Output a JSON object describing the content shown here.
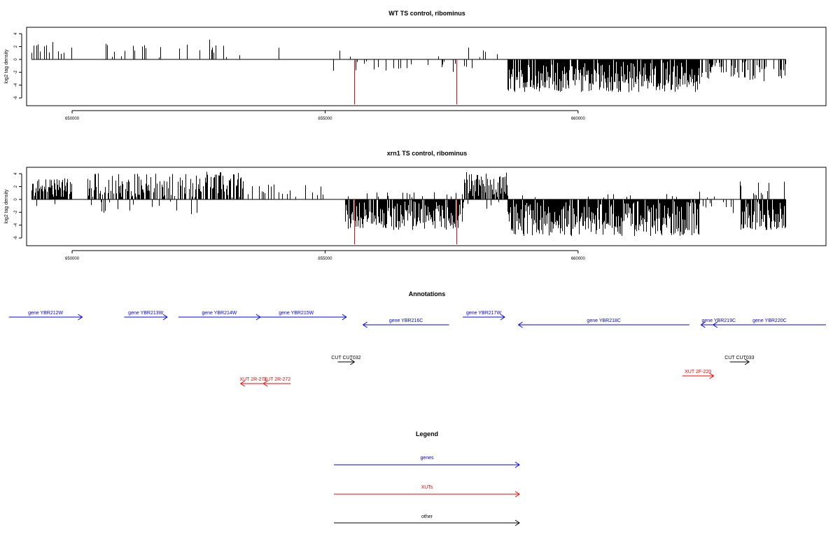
{
  "chart_data": [
    {
      "type": "bar",
      "title": "WT TS control, ribominus",
      "ylabel": "log2 tag density",
      "xlabel": "",
      "xlim": [
        649100,
        664900
      ],
      "ylim": [
        -7.2,
        5
      ],
      "yticks": [
        4,
        2,
        0,
        -2,
        -4,
        -6
      ],
      "xticks": [
        650000,
        655000,
        660000
      ],
      "grid": false,
      "bar_color": "#000000",
      "highlight_color": "#ff0000",
      "highlights": [
        {
          "x": 655580,
          "y": -7.0
        },
        {
          "x": 657600,
          "y": -7.0
        }
      ],
      "series": [
        {
          "seed": 11,
          "profile": "wt"
        }
      ]
    },
    {
      "type": "bar",
      "title": "xrn1 TS control, ribominus",
      "ylabel": "log2 tag density",
      "xlabel": "",
      "xlim": [
        649100,
        664900
      ],
      "ylim": [
        -7.2,
        5
      ],
      "yticks": [
        4,
        2,
        0,
        -2,
        -4,
        -6
      ],
      "xticks": [
        650000,
        655000,
        660000
      ],
      "grid": false,
      "bar_color": "#000000",
      "highlight_color": "#ff0000",
      "highlights": [
        {
          "x": 655580,
          "y": -7.0
        },
        {
          "x": 657600,
          "y": -7.0
        }
      ],
      "series": [
        {
          "seed": 23,
          "profile": "xrn1"
        }
      ]
    }
  ],
  "annotations": {
    "title": "Annotations",
    "features": [
      {
        "label": "gene YBR212W",
        "kind": "gene",
        "start": 648750,
        "end": 650200,
        "row": 0
      },
      {
        "label": "gene YBR213W",
        "kind": "gene",
        "start": 651030,
        "end": 651880,
        "row": 0
      },
      {
        "label": "gene YBR214W",
        "kind": "gene",
        "start": 652100,
        "end": 653720,
        "row": 0
      },
      {
        "label": "gene YBR215W",
        "kind": "gene",
        "start": 653440,
        "end": 655420,
        "row": 0
      },
      {
        "label": "gene YBR216C",
        "kind": "gene",
        "start": 657450,
        "end": 655750,
        "row": 1
      },
      {
        "label": "gene YBR217W",
        "kind": "gene",
        "start": 657720,
        "end": 658550,
        "row": 0
      },
      {
        "label": "gene YBR218C",
        "kind": "gene",
        "start": 662200,
        "end": 658820,
        "row": 1
      },
      {
        "label": "gene YBR219C",
        "kind": "gene",
        "start": 663130,
        "end": 662430,
        "row": 1
      },
      {
        "label": "gene YBR220C",
        "kind": "gene",
        "start": 664900,
        "end": 662670,
        "row": 1
      },
      {
        "label": "CUT CUT032",
        "kind": "other",
        "start": 655250,
        "end": 655580,
        "row": 2
      },
      {
        "label": "CUT CUT033",
        "kind": "other",
        "start": 663000,
        "end": 663380,
        "row": 2
      },
      {
        "label": "XUT 2R-271",
        "kind": "xut",
        "start": 653830,
        "end": 653330,
        "row": 3
      },
      {
        "label": "XUT 2R-272",
        "kind": "xut",
        "start": 654320,
        "end": 653780,
        "row": 3
      },
      {
        "label": "XUT 2F-220",
        "kind": "xut",
        "start": 662060,
        "end": 662680,
        "row": 4
      }
    ]
  },
  "legend": {
    "title": "Legend",
    "items": [
      {
        "label": "genes",
        "color": "#0000ff"
      },
      {
        "label": "XUTs",
        "color": "#ff0000"
      },
      {
        "label": "other",
        "color": "#000000"
      }
    ]
  },
  "colors": {
    "gene": "#0000ff",
    "xut": "#ff0000",
    "other": "#000000"
  }
}
